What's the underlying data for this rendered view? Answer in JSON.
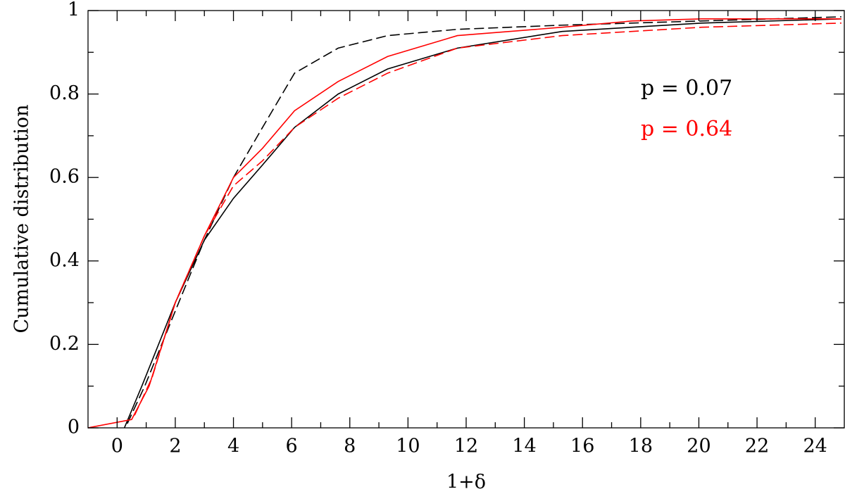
{
  "chart_data": {
    "type": "line",
    "xlabel": "1+δ",
    "ylabel": "Cumulative distribution",
    "xlim": [
      -1,
      25
    ],
    "ylim": [
      0,
      1
    ],
    "xticks": [
      0,
      2,
      4,
      6,
      8,
      10,
      12,
      14,
      16,
      18,
      20,
      22,
      24
    ],
    "xminor_ticks": [
      1,
      3,
      5,
      7,
      9,
      11,
      13,
      15,
      17,
      19,
      21,
      23
    ],
    "yticks": [
      0,
      0.2,
      0.4,
      0.6,
      0.8,
      1
    ],
    "yminor_ticks": [
      0.1,
      0.3,
      0.5,
      0.7,
      0.9
    ],
    "annotations": [
      {
        "text": "p = 0.07",
        "color": "#000000"
      },
      {
        "text": "p = 0.64",
        "color": "#ff0000"
      }
    ],
    "series": [
      {
        "color": "#000000",
        "dashed": false,
        "x": [
          0.25,
          0.85,
          2,
          3,
          4,
          5,
          6.1,
          7.6,
          9.3,
          11.7,
          15.3,
          20.1,
          24.9
        ],
        "values": [
          0,
          0.1,
          0.3,
          0.45,
          0.55,
          0.63,
          0.72,
          0.8,
          0.86,
          0.91,
          0.95,
          0.97,
          0.98
        ]
      },
      {
        "color": "#000000",
        "dashed": true,
        "x": [
          0.35,
          0.95,
          2,
          3,
          4,
          5,
          6.1,
          7.6,
          9.3,
          11.7,
          15.3,
          20.1,
          24.9
        ],
        "values": [
          0.01,
          0.1,
          0.28,
          0.45,
          0.6,
          0.72,
          0.85,
          0.91,
          0.94,
          0.955,
          0.965,
          0.975,
          0.985
        ]
      },
      {
        "color": "#ff0000",
        "dashed": false,
        "x": [
          -1,
          0.5,
          1.1,
          2,
          3,
          4,
          5,
          6.1,
          7.6,
          9.3,
          11.7,
          15.3,
          17.7,
          20.1,
          24.9
        ],
        "values": [
          0,
          0.02,
          0.1,
          0.3,
          0.46,
          0.6,
          0.67,
          0.76,
          0.83,
          0.89,
          0.94,
          0.96,
          0.975,
          0.98,
          0.98
        ]
      },
      {
        "color": "#ff0000",
        "dashed": true,
        "x": [
          0.6,
          1.2,
          2,
          3,
          4,
          5,
          6.1,
          7.6,
          9.3,
          11.7,
          15.3,
          20.1,
          24.9
        ],
        "values": [
          0.03,
          0.12,
          0.3,
          0.46,
          0.58,
          0.64,
          0.72,
          0.79,
          0.85,
          0.91,
          0.94,
          0.96,
          0.97
        ]
      }
    ]
  }
}
